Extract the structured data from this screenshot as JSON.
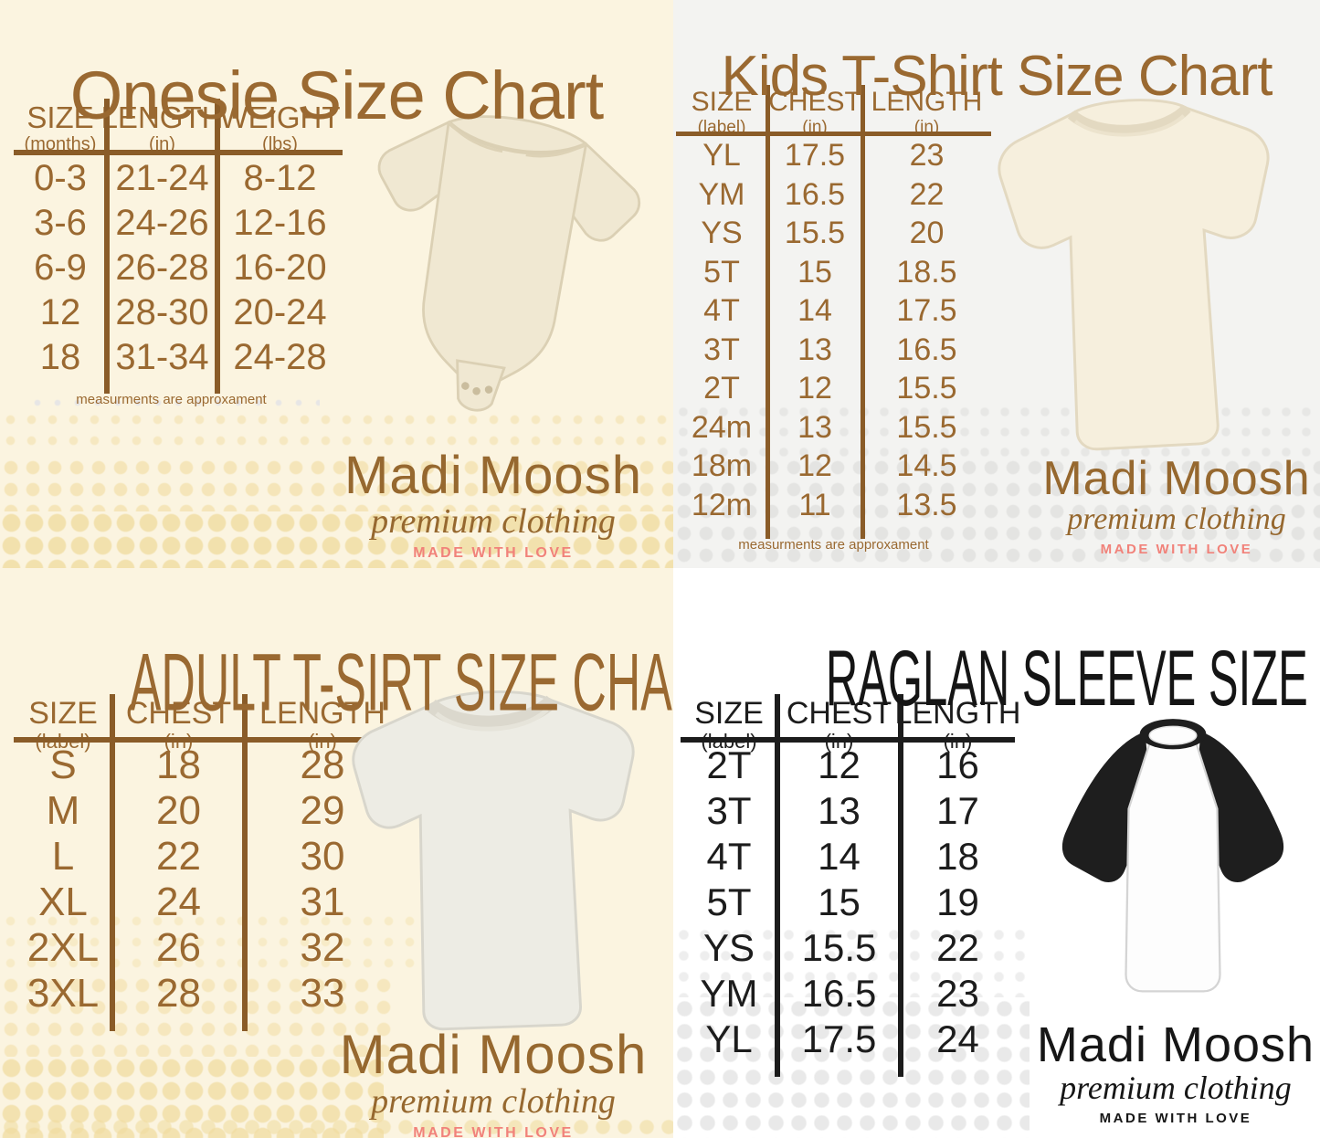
{
  "brand": {
    "name": "Madi Moosh",
    "tagline": "premium clothing",
    "slogan": "MADE WITH LOVE"
  },
  "colors": {
    "accent_brown": "#9a6931",
    "table_line_brown": "#8a5c28",
    "black": "#1c1c1c",
    "salmon_slogan": "#f1827a",
    "cream_background": "#fbf4e0",
    "gray_background": "#f3f3f1",
    "white_background": "#ffffff",
    "dot_yellow": "#f2dfa8",
    "dot_gray": "#e4e4e2"
  },
  "panels": {
    "onesie": {
      "title": "Onesie Size Chart",
      "columns": [
        {
          "label": "SIZE",
          "unit": "(months)"
        },
        {
          "label": "LENGTH",
          "unit": "(in)"
        },
        {
          "label": "WEIGHT",
          "unit": "(lbs)"
        }
      ],
      "rows": [
        [
          "0-3",
          "21-24",
          "8-12"
        ],
        [
          "3-6",
          "24-26",
          "12-16"
        ],
        [
          "6-9",
          "26-28",
          "16-20"
        ],
        [
          "12",
          "28-30",
          "20-24"
        ],
        [
          "18",
          "31-34",
          "24-28"
        ]
      ],
      "footnote": "measurments are approxament"
    },
    "kids": {
      "title": "Kids T-Shirt Size Chart",
      "columns": [
        {
          "label": "SIZE",
          "unit": "(label)"
        },
        {
          "label": "CHEST",
          "unit": "(in)"
        },
        {
          "label": "LENGTH",
          "unit": "(in)"
        }
      ],
      "rows": [
        [
          "YL",
          "17.5",
          "23"
        ],
        [
          "YM",
          "16.5",
          "22"
        ],
        [
          "YS",
          "15.5",
          "20"
        ],
        [
          "5T",
          "15",
          "18.5"
        ],
        [
          "4T",
          "14",
          "17.5"
        ],
        [
          "3T",
          "13",
          "16.5"
        ],
        [
          "2T",
          "12",
          "15.5"
        ],
        [
          "24m",
          "13",
          "15.5"
        ],
        [
          "18m",
          "12",
          "14.5"
        ],
        [
          "12m",
          "11",
          "13.5"
        ]
      ],
      "footnote": "measurments are approxament"
    },
    "adult": {
      "title": "ADULT T-SIRT SIZE CHART",
      "columns": [
        {
          "label": "SIZE",
          "unit": "(label)"
        },
        {
          "label": "CHEST",
          "unit": "(in)"
        },
        {
          "label": "LENGTH",
          "unit": "(in)"
        }
      ],
      "rows": [
        [
          "S",
          "18",
          "28"
        ],
        [
          "M",
          "20",
          "29"
        ],
        [
          "L",
          "22",
          "30"
        ],
        [
          "XL",
          "24",
          "31"
        ],
        [
          "2XL",
          "26",
          "32"
        ],
        [
          "3XL",
          "28",
          "33"
        ]
      ]
    },
    "raglan": {
      "title": "RAGLAN SLEEVE SIZE CHART",
      "columns": [
        {
          "label": "SIZE",
          "unit": "(label)"
        },
        {
          "label": "CHEST",
          "unit": "(in)"
        },
        {
          "label": "LENGTH",
          "unit": "(in)"
        }
      ],
      "rows": [
        [
          "2T",
          "12",
          "16"
        ],
        [
          "3T",
          "13",
          "17"
        ],
        [
          "4T",
          "14",
          "18"
        ],
        [
          "5T",
          "15",
          "19"
        ],
        [
          "YS",
          "15.5",
          "22"
        ],
        [
          "YM",
          "16.5",
          "23"
        ],
        [
          "YL",
          "17.5",
          "24"
        ]
      ]
    }
  }
}
